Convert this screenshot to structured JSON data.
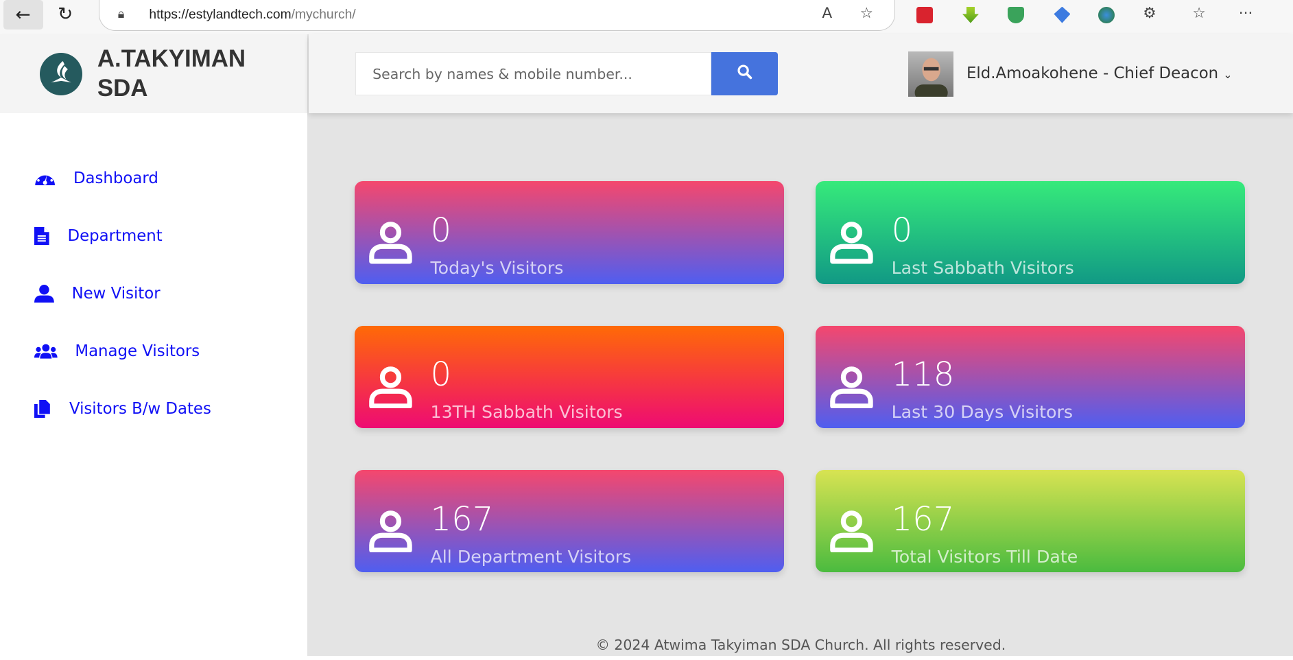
{
  "browser": {
    "url_domain": "https://estylandtech.com",
    "url_path": "/mychurch/",
    "icons": [
      "back-icon",
      "reload-icon",
      "lock-icon",
      "read-aloud-icon",
      "favorite-star-icon",
      "extension-icons",
      "puzzle-icon",
      "favorites-list-icon",
      "more-icon"
    ]
  },
  "brand": {
    "line1": "A.TAKYIMAN",
    "line2": "SDA",
    "logo_color": "#255a5e"
  },
  "search": {
    "placeholder": "Search by names & mobile number...",
    "button_color": "#4573dd"
  },
  "user": {
    "name": "Eld.Amoakohene - Chief Deacon"
  },
  "sidebar": {
    "items": [
      {
        "label": "Dashboard",
        "icon": "dashboard-gauge-icon"
      },
      {
        "label": "Department",
        "icon": "file-icon"
      },
      {
        "label": "New Visitor",
        "icon": "user-icon"
      },
      {
        "label": "Manage Visitors",
        "icon": "users-icon"
      },
      {
        "label": "Visitors B/w Dates",
        "icon": "copy-files-icon"
      }
    ],
    "color": "#1010f5"
  },
  "cards": [
    {
      "value": "0",
      "label": "Today's Visitors",
      "colors": [
        "#f5476d",
        "#4f5ef0"
      ]
    },
    {
      "value": "0",
      "label": "Last Sabbath Visitors",
      "colors": [
        "#36ea7b",
        "#119985"
      ]
    },
    {
      "value": "0",
      "label": "13TH Sabbath Visitors",
      "colors": [
        "#ff6a06",
        "#ee0b73"
      ]
    },
    {
      "value": "118",
      "label": "Last 30 Days Visitors",
      "colors": [
        "#f5476d",
        "#4f5ef0"
      ]
    },
    {
      "value": "167",
      "label": "All Department Visitors",
      "colors": [
        "#f5476d",
        "#4f5ef0"
      ]
    },
    {
      "value": "167",
      "label": "Total Visitors Till Date",
      "colors": [
        "#d8e352",
        "#4bbb3f"
      ]
    }
  ],
  "footer": "© 2024 Atwima Takyiman SDA Church. All rights reserved."
}
